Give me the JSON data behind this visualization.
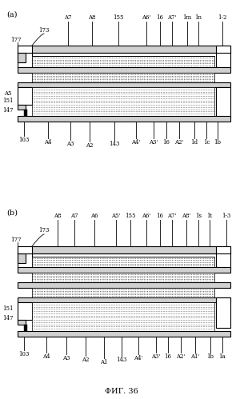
{
  "bg_color": "#ffffff",
  "fig_width": 3.05,
  "fig_height": 4.99,
  "title": "ФИГ. 36",
  "panel_a_label": "(a)",
  "panel_b_label": "(b)"
}
